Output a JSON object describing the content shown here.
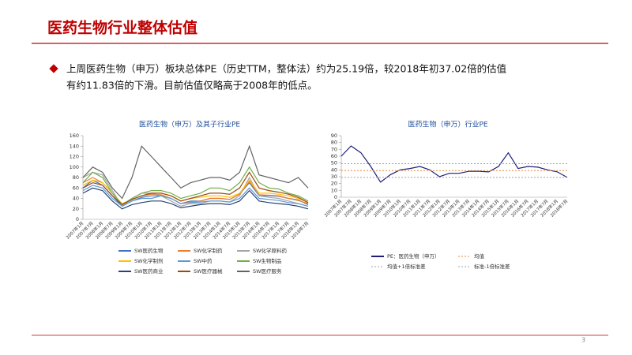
{
  "header": {
    "title": "医药生物行业整体估值"
  },
  "body": {
    "lines": [
      "上周医药生物（申万）板块总体PE（历史TTM，整体法）约为25.19倍，较2018年初37.02倍的估值",
      "有约11.83倍的下滑。目前估值仅略高于2008年的低点。"
    ]
  },
  "page_number": "3",
  "chart_data": [
    {
      "type": "line",
      "title": "医药生物（申万）及其子行业PE",
      "categories": [
        "2007年1月",
        "2007年7月",
        "2008年1月",
        "2008年7月",
        "2009年1月",
        "2009年7月",
        "2010年1月",
        "2010年7月",
        "2011年1月",
        "2011年7月",
        "2012年1月",
        "2012年7月",
        "2013年1月",
        "2013年7月",
        "2014年1月",
        "2014年7月",
        "2015年1月",
        "2015年7月",
        "2016年1月",
        "2016年7月",
        "2017年1月",
        "2017年7月",
        "2018年1月",
        "2018年7月"
      ],
      "ylim": [
        0,
        160
      ],
      "yticks": [
        0,
        20,
        40,
        60,
        80,
        100,
        120,
        140,
        160
      ],
      "legend": "bottom",
      "series": [
        {
          "name": "SW医药生物",
          "color": "#4472c4",
          "values": [
            60,
            75,
            65,
            45,
            25,
            35,
            42,
            45,
            45,
            40,
            30,
            35,
            35,
            40,
            40,
            38,
            48,
            70,
            45,
            45,
            44,
            40,
            37,
            28
          ]
        },
        {
          "name": "SW化学制药",
          "color": "#ed7d31",
          "values": [
            70,
            80,
            70,
            50,
            28,
            38,
            45,
            48,
            47,
            40,
            30,
            33,
            35,
            40,
            40,
            38,
            48,
            72,
            47,
            46,
            45,
            40,
            36,
            30
          ]
        },
        {
          "name": "SW化学原料药",
          "color": "#a5a5a5",
          "values": [
            80,
            90,
            85,
            55,
            25,
            40,
            50,
            50,
            45,
            35,
            25,
            30,
            30,
            35,
            35,
            33,
            45,
            80,
            45,
            42,
            40,
            35,
            30,
            25
          ]
        },
        {
          "name": "SW化学制剂",
          "color": "#ffc000",
          "values": [
            65,
            75,
            70,
            50,
            30,
            38,
            45,
            50,
            50,
            45,
            35,
            40,
            42,
            45,
            45,
            42,
            50,
            75,
            50,
            50,
            48,
            45,
            40,
            32
          ]
        },
        {
          "name": "SW中药",
          "color": "#5b9bd5",
          "values": [
            55,
            65,
            60,
            40,
            25,
            35,
            40,
            40,
            45,
            40,
            30,
            32,
            33,
            35,
            35,
            33,
            40,
            60,
            40,
            38,
            36,
            32,
            30,
            25
          ]
        },
        {
          "name": "SW生物制品",
          "color": "#70ad47",
          "values": [
            70,
            90,
            80,
            50,
            28,
            40,
            50,
            55,
            55,
            50,
            40,
            45,
            50,
            60,
            60,
            55,
            70,
            100,
            70,
            60,
            58,
            50,
            45,
            35
          ]
        },
        {
          "name": "SW医药商业",
          "color": "#264478",
          "values": [
            50,
            60,
            55,
            35,
            20,
            28,
            32,
            35,
            35,
            30,
            22,
            25,
            28,
            30,
            30,
            28,
            35,
            55,
            35,
            32,
            30,
            28,
            25,
            20
          ]
        },
        {
          "name": "SW医疗器械",
          "color": "#9e480e",
          "values": [
            60,
            70,
            65,
            45,
            28,
            38,
            45,
            50,
            50,
            45,
            35,
            40,
            45,
            50,
            50,
            48,
            60,
            90,
            60,
            55,
            52,
            48,
            42,
            32
          ]
        },
        {
          "name": "SW医疗服务",
          "color": "#636363",
          "values": [
            80,
            100,
            90,
            60,
            40,
            80,
            140,
            120,
            100,
            80,
            60,
            70,
            75,
            80,
            80,
            75,
            90,
            140,
            85,
            80,
            75,
            70,
            80,
            60
          ]
        }
      ]
    },
    {
      "type": "line",
      "title": "医药生物（申万）行业PE",
      "categories": [
        "2007年1月",
        "2007年7月",
        "2008年1月",
        "2008年7月",
        "2009年1月",
        "2009年7月",
        "2010年1月",
        "2010年7月",
        "2011年1月",
        "2011年7月",
        "2012年1月",
        "2012年7月",
        "2013年1月",
        "2013年7月",
        "2014年1月",
        "2014年7月",
        "2015年1月",
        "2015年7月",
        "2016年1月",
        "2016年7月",
        "2017年1月",
        "2017年7月",
        "2018年1月",
        "2018年7月"
      ],
      "ylim": [
        0,
        90
      ],
      "yticks": [
        0,
        10,
        20,
        30,
        40,
        50,
        60,
        70,
        80,
        90
      ],
      "legend": "bottom",
      "series": [
        {
          "name": "PE：医药生物（申万）",
          "color": "#1f1f7a",
          "dash": false,
          "values": [
            60,
            75,
            65,
            45,
            22,
            33,
            40,
            42,
            45,
            40,
            30,
            35,
            35,
            38,
            38,
            37,
            45,
            65,
            42,
            45,
            44,
            40,
            37,
            29
          ]
        },
        {
          "name": "均值",
          "color": "#e08a3c",
          "dash": true,
          "values": [
            39,
            39,
            39,
            39,
            39,
            39,
            39,
            39,
            39,
            39,
            39,
            39,
            39,
            39,
            39,
            39,
            39,
            39,
            39,
            39,
            39,
            39,
            39,
            39
          ]
        },
        {
          "name": "均值+1倍标准差",
          "color": "#a0a0a0",
          "dash": true,
          "values": [
            49,
            49,
            49,
            49,
            49,
            49,
            49,
            49,
            49,
            49,
            49,
            49,
            49,
            49,
            49,
            49,
            49,
            49,
            49,
            49,
            49,
            49,
            49,
            49
          ]
        },
        {
          "name": "标准-1倍标准差",
          "color": "#a0a0a0",
          "dash": true,
          "values": [
            29,
            29,
            29,
            29,
            29,
            29,
            29,
            29,
            29,
            29,
            29,
            29,
            29,
            29,
            29,
            29,
            29,
            29,
            29,
            29,
            29,
            29,
            29,
            29
          ]
        }
      ]
    }
  ]
}
